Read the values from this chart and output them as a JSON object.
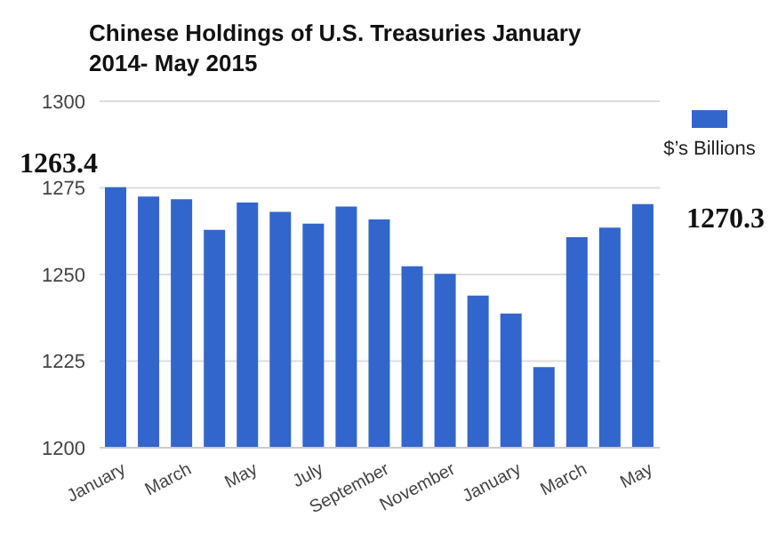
{
  "chart_data": {
    "type": "bar",
    "title": "Chinese Holdings of U.S. Treasuries January 2014- May 2015",
    "categories": [
      "January",
      null,
      "March",
      null,
      "May",
      null,
      "July",
      null,
      "September",
      null,
      "November",
      null,
      "January",
      null,
      "March",
      null,
      "May"
    ],
    "series": [
      {
        "name": "$’s Billions",
        "color": "#3366cc",
        "values": [
          1275.2,
          1272.5,
          1271.7,
          1262.9,
          1270.8,
          1268.1,
          1264.7,
          1269.6,
          1265.9,
          1252.4,
          1250.2,
          1243.9,
          1238.7,
          1223.3,
          1260.8,
          1263.5,
          1270.3
        ]
      }
    ],
    "ylim": [
      1200,
      1300
    ],
    "yticks": [
      1200,
      1225,
      1250,
      1275,
      1300
    ],
    "grid": "y",
    "legend": "top right",
    "annotations": [
      "1263.4",
      "1270.3"
    ]
  }
}
